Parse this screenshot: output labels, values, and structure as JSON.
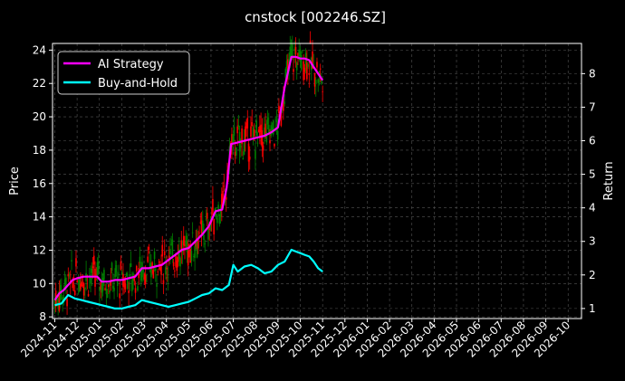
{
  "chart_data": {
    "type": "line",
    "title": "cnstock [002246.SZ]",
    "ylabel": "Price",
    "ylabel_right": "Return",
    "ylim": [
      7.9,
      24.4
    ],
    "ylim_right": [
      0.7,
      8.9
    ],
    "yticks": [
      8,
      10,
      12,
      14,
      16,
      18,
      20,
      22,
      24
    ],
    "yticks_right": [
      1,
      2,
      3,
      4,
      5,
      6,
      7,
      8
    ],
    "x_ticks": [
      "2024-11",
      "2024-12",
      "2025-01",
      "2025-02",
      "2025-03",
      "2025-04",
      "2025-05",
      "2025-06",
      "2025-07",
      "2025-08",
      "2025-09",
      "2025-10",
      "2025-11",
      "2025-12",
      "2026-01",
      "2026-02",
      "2026-03",
      "2026-04",
      "2026-05",
      "2026-06",
      "2026-07",
      "2026-08",
      "2026-09",
      "2026-10"
    ],
    "x_range_months": [
      -0.1,
      23.6
    ],
    "grid": true,
    "legend_position": "top-left",
    "candle_up_color": "#ff0000",
    "candle_down_color": "#008000",
    "series": [
      {
        "name": "AI Strategy",
        "axis": "right",
        "color": "#ff00ff",
        "x": [
          0.0,
          0.2,
          0.4,
          0.6,
          0.8,
          1.0,
          1.3,
          1.6,
          1.9,
          2.1,
          2.4,
          2.7,
          3.0,
          3.3,
          3.6,
          3.9,
          4.2,
          4.5,
          4.8,
          5.1,
          5.4,
          5.7,
          6.0,
          6.3,
          6.6,
          6.9,
          7.2,
          7.5,
          7.7,
          7.9,
          8.2,
          8.5,
          8.8,
          9.1,
          9.4,
          9.7,
          10.0,
          10.3,
          10.6,
          10.8,
          11.0,
          11.2,
          11.4,
          11.6,
          11.8,
          12.0
        ],
        "values": [
          1.25,
          1.45,
          1.55,
          1.7,
          1.85,
          1.9,
          1.95,
          1.95,
          1.95,
          1.8,
          1.8,
          1.85,
          1.85,
          1.9,
          1.95,
          2.2,
          2.2,
          2.25,
          2.3,
          2.45,
          2.6,
          2.75,
          2.8,
          3.0,
          3.2,
          3.45,
          3.9,
          3.95,
          4.6,
          5.9,
          5.95,
          6.0,
          6.05,
          6.1,
          6.15,
          6.25,
          6.4,
          7.6,
          8.5,
          8.5,
          8.45,
          8.45,
          8.4,
          8.2,
          8.0,
          7.8
        ]
      },
      {
        "name": "Buy-and-Hold",
        "axis": "right",
        "color": "#00ffff",
        "x": [
          0.0,
          0.3,
          0.6,
          0.9,
          1.2,
          1.5,
          1.8,
          2.1,
          2.4,
          2.7,
          3.0,
          3.3,
          3.6,
          3.9,
          4.2,
          4.5,
          4.8,
          5.1,
          5.4,
          5.7,
          6.0,
          6.3,
          6.6,
          6.9,
          7.2,
          7.5,
          7.8,
          8.0,
          8.2,
          8.5,
          8.8,
          9.1,
          9.4,
          9.7,
          10.0,
          10.3,
          10.6,
          10.8,
          11.0,
          11.2,
          11.4,
          11.6,
          11.8,
          12.0
        ],
        "values": [
          1.1,
          1.15,
          1.4,
          1.3,
          1.25,
          1.2,
          1.15,
          1.1,
          1.05,
          1.0,
          1.0,
          1.05,
          1.1,
          1.25,
          1.2,
          1.15,
          1.1,
          1.05,
          1.1,
          1.15,
          1.2,
          1.3,
          1.4,
          1.45,
          1.6,
          1.55,
          1.7,
          2.3,
          2.1,
          2.25,
          2.3,
          2.2,
          2.05,
          2.1,
          2.3,
          2.4,
          2.75,
          2.7,
          2.65,
          2.6,
          2.55,
          2.4,
          2.2,
          2.1
        ]
      }
    ]
  }
}
